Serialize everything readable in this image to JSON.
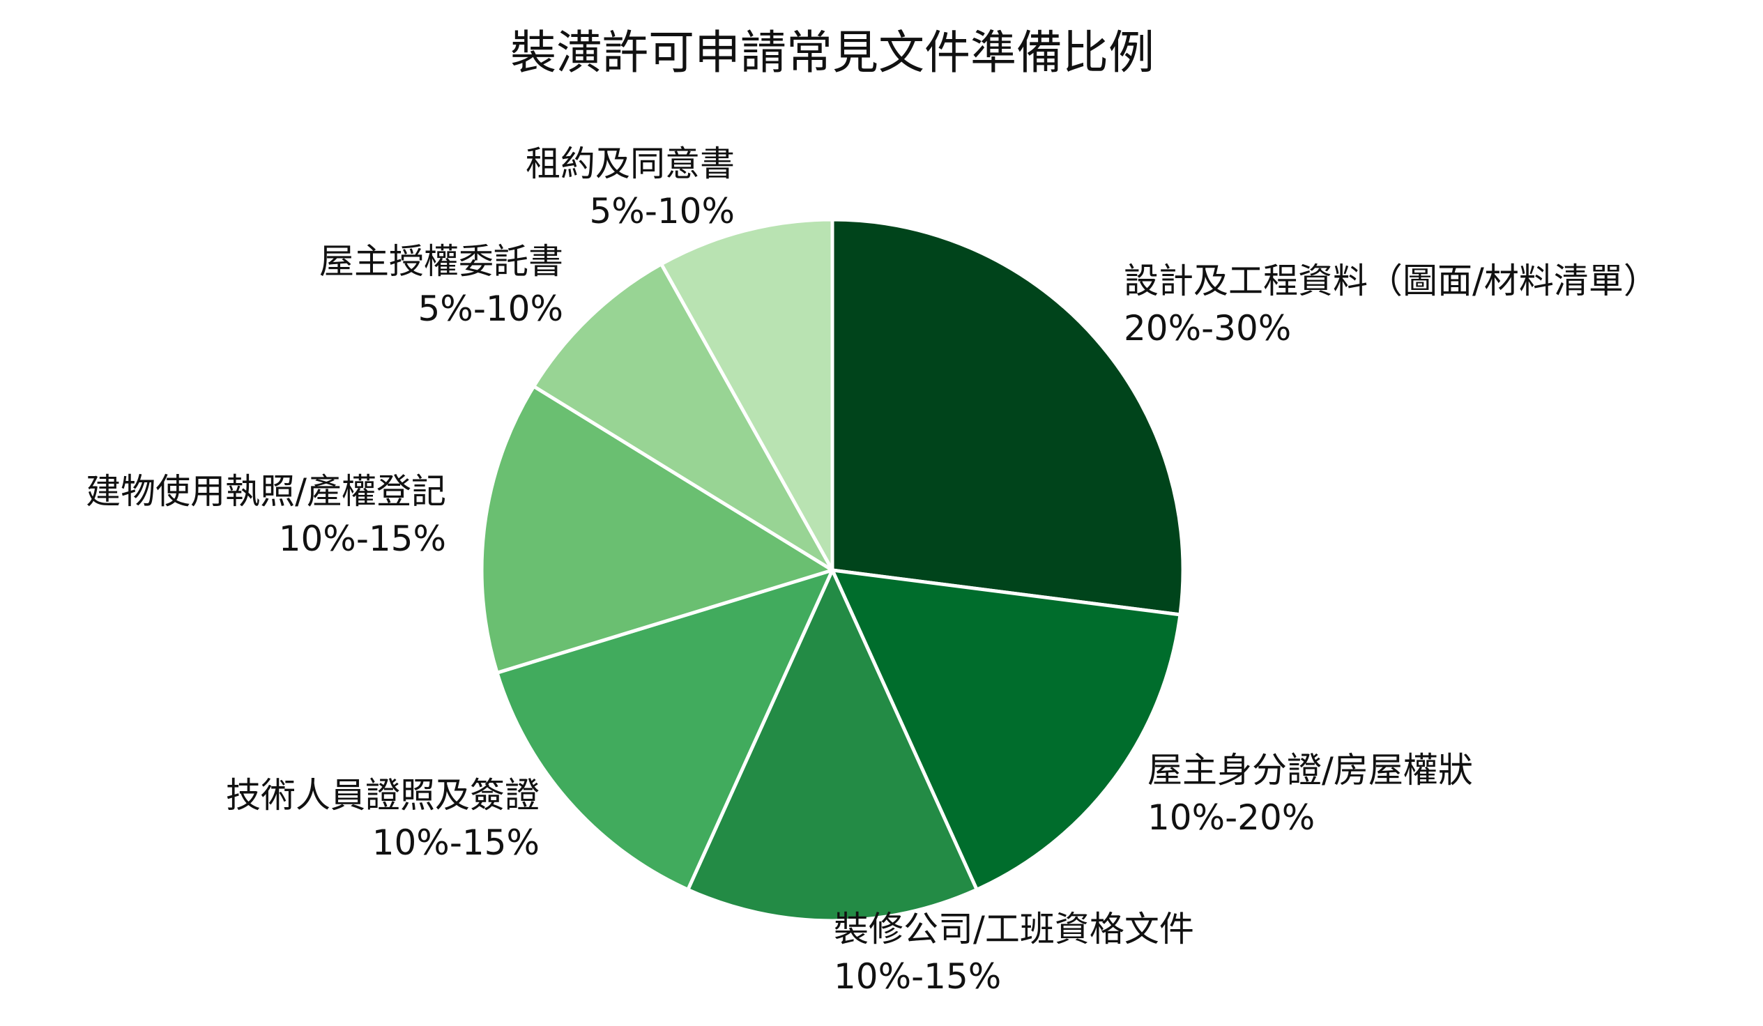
{
  "chart_data": {
    "type": "pie",
    "title": "裝潢許可申請常見文件準備比例",
    "start_angle_deg": 0,
    "direction": "clockwise",
    "slices": [
      {
        "label": "設計及工程資料（圖面/材料清單）",
        "range_label": "20%-30%",
        "value": 25,
        "color": "#00441b"
      },
      {
        "label": "屋主身分證/房屋權狀",
        "range_label": "10%-20%",
        "value": 15,
        "color": "#006d2c"
      },
      {
        "label": "裝修公司/工班資格文件",
        "range_label": "10%-15%",
        "value": 12.5,
        "color": "#238b45"
      },
      {
        "label": "技術人員證照及簽證",
        "range_label": "10%-15%",
        "value": 12.5,
        "color": "#41ab5d"
      },
      {
        "label": "建物使用執照/產權登記",
        "range_label": "10%-15%",
        "value": 12.5,
        "color": "#6abf71"
      },
      {
        "label": "屋主授權委託書",
        "range_label": "5%-10%",
        "value": 7.5,
        "color": "#98d494"
      },
      {
        "label": "租約及同意書",
        "range_label": "5%-10%",
        "value": 7.5,
        "color": "#b9e3b2"
      }
    ],
    "legend": "none"
  }
}
